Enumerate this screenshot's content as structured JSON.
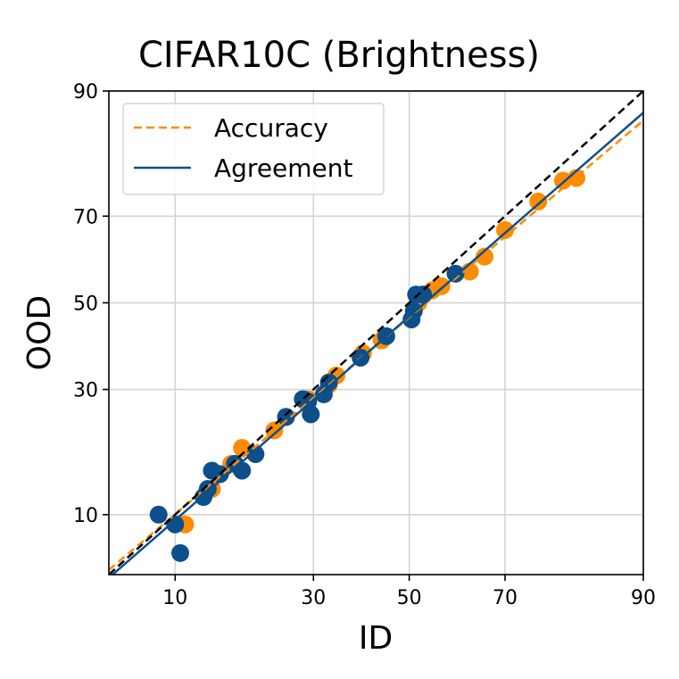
{
  "chart_data": {
    "type": "scatter",
    "title": "CIFAR10C (Brightness)",
    "xlabel": "ID",
    "ylabel": "OOD",
    "axis_scale": "probit",
    "xlim": [
      5,
      90
    ],
    "ylim": [
      5,
      90
    ],
    "x_ticks": [
      10,
      30,
      50,
      70,
      90
    ],
    "y_ticks": [
      10,
      30,
      50,
      70,
      90
    ],
    "grid": true,
    "legend_position": "top-left",
    "colors": {
      "accuracy": "#ff8c00",
      "agreement": "#0d4f8b",
      "diagonal": "#000000",
      "grid": "#d3d3d3"
    },
    "legend": [
      {
        "label": "Accuracy",
        "style": "dashed",
        "color": "#ff8c00"
      },
      {
        "label": "Agreement",
        "style": "solid",
        "color": "#0d4f8b"
      }
    ],
    "series": [
      {
        "name": "Accuracy",
        "kind": "points",
        "color": "#ff8c00",
        "points": [
          [
            11,
            9
          ],
          [
            14,
            13
          ],
          [
            15,
            15
          ],
          [
            16.5,
            16.5
          ],
          [
            18,
            19
          ],
          [
            23,
            22
          ],
          [
            25,
            24.5
          ],
          [
            29,
            28
          ],
          [
            33,
            31
          ],
          [
            34.5,
            33
          ],
          [
            40,
            38
          ],
          [
            44,
            41
          ],
          [
            52,
            50
          ],
          [
            55,
            53
          ],
          [
            57,
            54
          ],
          [
            63,
            57.5
          ],
          [
            66,
            61
          ],
          [
            70,
            67
          ],
          [
            76,
            73
          ],
          [
            80,
            77
          ],
          [
            82,
            77.5
          ]
        ]
      },
      {
        "name": "Agreement",
        "kind": "points",
        "color": "#0d4f8b",
        "points": [
          [
            8.5,
            10
          ],
          [
            10,
            9
          ],
          [
            10.5,
            6.5
          ],
          [
            13,
            12
          ],
          [
            13.5,
            13
          ],
          [
            14,
            15.5
          ],
          [
            15,
            15
          ],
          [
            17,
            16.5
          ],
          [
            18,
            15.5
          ],
          [
            20,
            18
          ],
          [
            25,
            24.5
          ],
          [
            28,
            28
          ],
          [
            29,
            27.5
          ],
          [
            29.5,
            25
          ],
          [
            32,
            29
          ],
          [
            33,
            31.5
          ],
          [
            39.5,
            37
          ],
          [
            45,
            42
          ],
          [
            50.5,
            46
          ],
          [
            51,
            48
          ],
          [
            51.5,
            52
          ],
          [
            53,
            52
          ],
          [
            60,
            57
          ]
        ]
      },
      {
        "name": "Accuracy fit",
        "kind": "line",
        "style": "dashed",
        "color": "#ff8c00",
        "x": [
          5,
          90
        ],
        "y": [
          5.3,
          86.5
        ]
      },
      {
        "name": "Agreement fit",
        "kind": "line",
        "style": "solid",
        "color": "#0d4f8b",
        "x": [
          5,
          90
        ],
        "y": [
          4.8,
          87.5
        ]
      },
      {
        "name": "y = x",
        "kind": "line",
        "style": "dashed",
        "color": "#000000",
        "x": [
          5,
          90
        ],
        "y": [
          5,
          90
        ]
      }
    ]
  }
}
